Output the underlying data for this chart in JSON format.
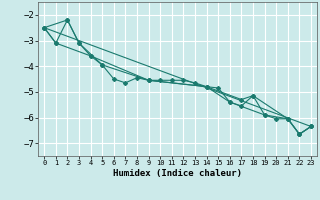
{
  "title": "",
  "xlabel": "Humidex (Indice chaleur)",
  "ylabel": "",
  "bg_color": "#cceaea",
  "grid_color": "#ffffff",
  "line_color": "#1a7a6e",
  "xlim": [
    -0.5,
    23.5
  ],
  "ylim": [
    -7.5,
    -1.5
  ],
  "xticks": [
    0,
    1,
    2,
    3,
    4,
    5,
    6,
    7,
    8,
    9,
    10,
    11,
    12,
    13,
    14,
    15,
    16,
    17,
    18,
    19,
    20,
    21,
    22,
    23
  ],
  "yticks": [
    -7,
    -6,
    -5,
    -4,
    -3,
    -2
  ],
  "series_main_x": [
    0,
    1,
    2,
    3,
    4,
    5,
    6,
    7,
    8,
    9,
    10,
    11,
    12,
    13,
    14,
    15,
    16,
    17,
    18,
    19,
    20,
    21,
    22,
    23
  ],
  "series_main_y": [
    -2.5,
    -3.1,
    -2.2,
    -3.1,
    -3.6,
    -3.95,
    -4.5,
    -4.65,
    -4.45,
    -4.55,
    -4.55,
    -4.55,
    -4.55,
    -4.65,
    -4.8,
    -4.85,
    -5.4,
    -5.55,
    -5.15,
    -5.9,
    -6.05,
    -6.05,
    -6.65,
    -6.35
  ],
  "series_upper_x": [
    0,
    2,
    3,
    5,
    9,
    14,
    17,
    18,
    21,
    22,
    23
  ],
  "series_upper_y": [
    -2.5,
    -2.2,
    -3.1,
    -3.95,
    -4.55,
    -4.8,
    -5.3,
    -5.15,
    -6.05,
    -6.65,
    -6.35
  ],
  "series_lower_x": [
    0,
    1,
    4,
    9,
    14,
    16,
    19,
    21,
    22,
    23
  ],
  "series_lower_y": [
    -2.5,
    -3.1,
    -3.6,
    -4.55,
    -4.8,
    -5.4,
    -5.9,
    -6.05,
    -6.65,
    -6.35
  ],
  "trend_x": [
    0,
    23
  ],
  "trend_y": [
    -2.5,
    -6.35
  ]
}
